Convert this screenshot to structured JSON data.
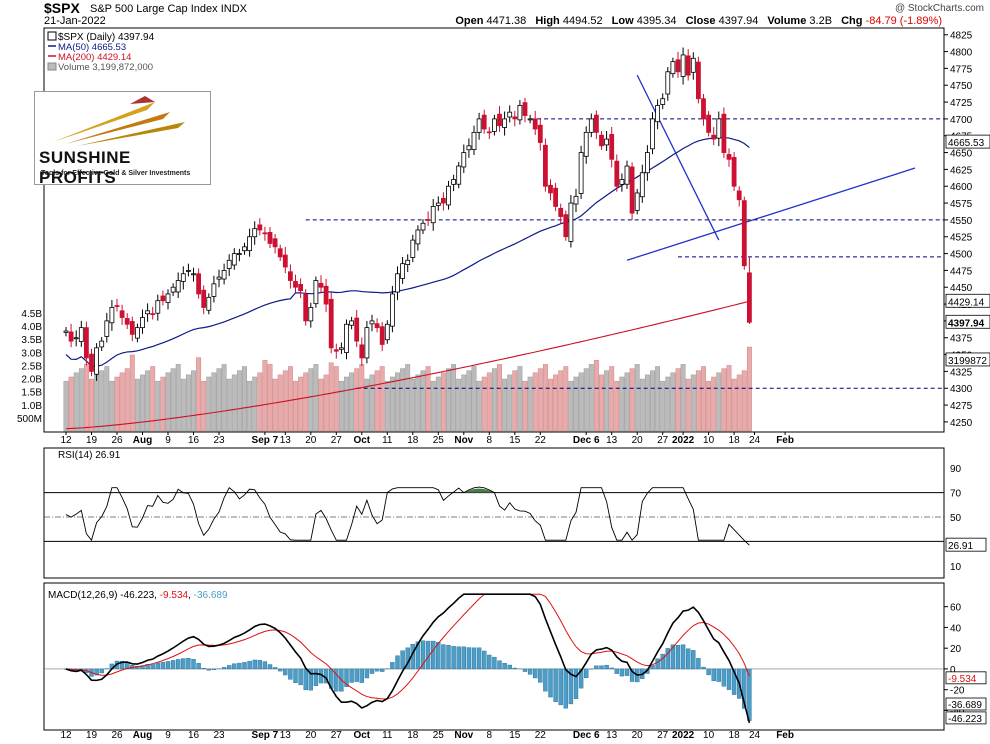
{
  "header": {
    "symbol": "$SPX",
    "description": "S&P 500 Large Cap Index",
    "exchange": "INDX",
    "date": "21-Jan-2022",
    "copyright": "@ StockCharts.com",
    "open_label": "Open",
    "open": "4471.38",
    "high_label": "High",
    "high": "4494.52",
    "low_label": "Low",
    "low": "4395.34",
    "close_label": "Close",
    "close": "4397.94",
    "volume_label": "Volume",
    "volume": "3.2B",
    "chg_label": "Chg",
    "chg": "-84.79 (-1.89%)"
  },
  "legend": {
    "price": "$SPX (Daily) 4397.94",
    "ma50": "MA(50) 4665.53",
    "ma200": "MA(200) 4429.14",
    "volume": "Volume 3,199,872,000"
  },
  "logo": {
    "line1": "SUNSHINE PROFITS",
    "line2": "Tools for Effective Gold & Silver Investments"
  },
  "colors": {
    "up": "#ffffff",
    "down": "#cc1133",
    "ma50": "#0a1a8a",
    "ma200": "#cc1122",
    "volume_up": "#bbbbbb",
    "volume_down": "#e8aaaa",
    "trendline": "#2233cc",
    "rsi_line": "#000000",
    "rsi_fill": "#4a7a4a",
    "macd_line": "#000000",
    "signal_line": "#dd1111",
    "histogram": "#4a9ec8"
  },
  "xaxis": {
    "labels": [
      "12",
      "19",
      "26",
      "Aug",
      "2",
      "9",
      "16",
      "23",
      "Sep",
      "7",
      "13",
      "20",
      "27",
      "Oct",
      "4",
      "11",
      "18",
      "25",
      "Nov",
      "1",
      "8",
      "15",
      "22",
      "Dec",
      "6",
      "13",
      "20",
      "27",
      "2022",
      "3",
      "10",
      "18",
      "24",
      "Feb"
    ],
    "display": [
      {
        "t": "12",
        "d": 0
      },
      {
        "t": "19",
        "d": 5
      },
      {
        "t": "26",
        "d": 10
      },
      {
        "t": "Aug",
        "d": 15,
        "b": true
      },
      {
        "t": "9",
        "d": 20
      },
      {
        "t": "16",
        "d": 25
      },
      {
        "t": "23",
        "d": 30
      },
      {
        "t": "Sep 7",
        "d": 39,
        "b": true
      },
      {
        "t": "13",
        "d": 43
      },
      {
        "t": "20",
        "d": 48
      },
      {
        "t": "27",
        "d": 53
      },
      {
        "t": "Oct",
        "d": 58,
        "b": true
      },
      {
        "t": "11",
        "d": 63
      },
      {
        "t": "18",
        "d": 68
      },
      {
        "t": "25",
        "d": 73
      },
      {
        "t": "Nov",
        "d": 78,
        "b": true
      },
      {
        "t": "8",
        "d": 83
      },
      {
        "t": "15",
        "d": 88
      },
      {
        "t": "22",
        "d": 93
      },
      {
        "t": "Dec 6",
        "d": 102,
        "b": true
      },
      {
        "t": "13",
        "d": 107
      },
      {
        "t": "20",
        "d": 112
      },
      {
        "t": "27",
        "d": 117
      },
      {
        "t": "2022",
        "d": 121,
        "b": true
      },
      {
        "t": "10",
        "d": 126
      },
      {
        "t": "18",
        "d": 131
      },
      {
        "t": "24",
        "d": 135
      },
      {
        "t": "Feb",
        "d": 141,
        "b": true
      }
    ]
  },
  "price_axis": {
    "ticks": [
      4250,
      4275,
      4300,
      4325,
      4350,
      4375,
      4400,
      4425,
      4450,
      4475,
      4500,
      4525,
      4550,
      4575,
      4600,
      4625,
      4650,
      4675,
      4700,
      4725,
      4750,
      4775,
      4800,
      4825
    ],
    "tags": [
      {
        "label": "4665.53",
        "value": 4665.53,
        "bold": false
      },
      {
        "label": "4429.14",
        "value": 4429.14,
        "bold": false
      },
      {
        "label": "4397.94",
        "value": 4397.94,
        "bold": true
      },
      {
        "label": "3199872",
        "value": 4342,
        "bold": false
      }
    ],
    "labels": {
      "4525": "4525",
      "4500": "4500",
      "4475": "4475",
      "4450": "4450",
      "4375": "4375",
      "4350": "4350",
      "4325": "4325",
      "4300": "4300",
      "4275": "4275",
      "4250": "4250",
      "4825": "4825",
      "4800": "4800",
      "4775": "4775",
      "4750": "4750",
      "4725": "4725",
      "4700": "4700",
      "4675": "4675",
      "4650": "4650",
      "4625": "4625",
      "4600": "4600",
      "4575": "4575",
      "4550": "4550"
    }
  },
  "volume_axis": {
    "labels": [
      "4.5B",
      "4.0B",
      "3.5B",
      "3.0B",
      "2.5B",
      "2.0B",
      "1.5B",
      "1.0B",
      "500M"
    ],
    "values": [
      4.5,
      4.0,
      3.5,
      3.0,
      2.5,
      2.0,
      1.5,
      1.0,
      0.5
    ]
  },
  "rsi": {
    "title": "RSI(14) 26.91",
    "ticks": [
      "90",
      "70",
      "50",
      "30",
      "10"
    ],
    "tick_values": [
      90,
      70,
      50,
      30,
      10
    ],
    "last_label": "26.91",
    "last": 26.91
  },
  "macd": {
    "title_prefix": "MACD(12,26,9)",
    "macd_value": "-46.223",
    "signal_value": "-9.534",
    "hist_value": "-36.689",
    "ticks": [
      "60",
      "40",
      "20",
      "0",
      "-20",
      "-40"
    ],
    "tick_values": [
      60,
      40,
      20,
      0,
      -20,
      -40
    ],
    "tags": [
      "-9.534",
      "-36.689",
      "-46.223"
    ]
  },
  "chart_data": {
    "type": "line",
    "title": "$SPX S&P 500 Large Cap Index INDX",
    "x_start": "2021-07-12",
    "y_range": [
      4235,
      4835
    ],
    "horizontal_levels": [
      4700,
      4550,
      4495,
      4300
    ],
    "series": [
      {
        "name": "$SPX (Daily) close",
        "values": [
          4385,
          4370,
          4375,
          4390,
          4345,
          4325,
          4360,
          4370,
          4400,
          4420,
          4422,
          4405,
          4395,
          4380,
          4390,
          4405,
          4415,
          4410,
          4430,
          4430,
          4440,
          4450,
          4460,
          4470,
          4475,
          4470,
          4440,
          4420,
          4435,
          4455,
          4465,
          4475,
          4490,
          4500,
          4500,
          4510,
          4525,
          4537,
          4535,
          4530,
          4515,
          4510,
          4495,
          4480,
          4460,
          4450,
          4445,
          4400,
          4420,
          4460,
          4450,
          4425,
          4360,
          4355,
          4360,
          4395,
          4400,
          4370,
          4345,
          4390,
          4400,
          4390,
          4365,
          4395,
          4440,
          4470,
          4485,
          4490,
          4520,
          4535,
          4545,
          4550,
          4570,
          4575,
          4575,
          4600,
          4610,
          4630,
          4650,
          4660,
          4680,
          4700,
          4685,
          4680,
          4700,
          4690,
          4700,
          4710,
          4700,
          4720,
          4705,
          4700,
          4685,
          4665,
          4600,
          4590,
          4570,
          4555,
          4525,
          4575,
          4585,
          4650,
          4680,
          4700,
          4680,
          4660,
          4670,
          4640,
          4600,
          4610,
          4630,
          4560,
          4590,
          4620,
          4650,
          4700,
          4720,
          4730,
          4770,
          4785,
          4770,
          4795,
          4765,
          4790,
          4730,
          4700,
          4680,
          4670,
          4700,
          4650,
          4640,
          4600,
          4580,
          4482,
          4398
        ]
      },
      {
        "name": "MA(50)",
        "last": 4665.53
      },
      {
        "name": "MA(200)",
        "last": 4429.14
      },
      {
        "name": "Volume (B)",
        "last": 3.2
      }
    ]
  }
}
